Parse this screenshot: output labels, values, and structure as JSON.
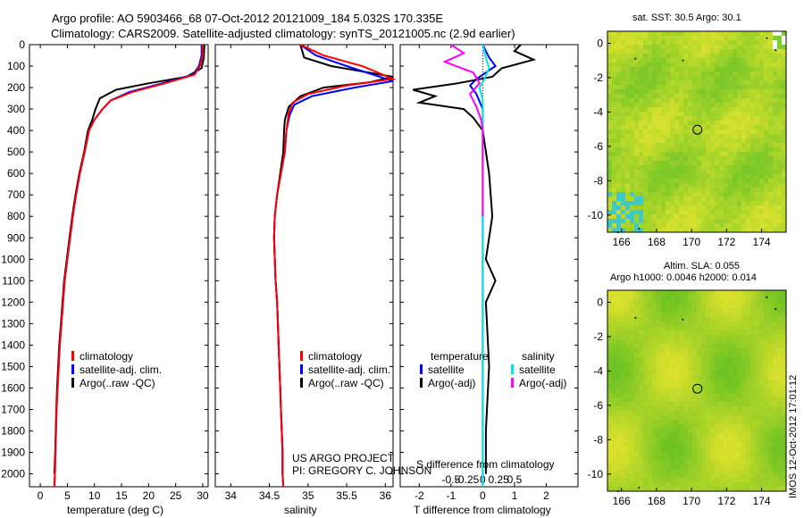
{
  "header": {
    "line1": "Argo profile: AO 5903466_68 07-Oct-2012 20121009_184 5.032S 170.335E",
    "line2": "Climatology: CARS2009. Satellite-adjusted climatology: synTS_20121005.nc (2.9d earlier)"
  },
  "depth_axis": {
    "ticks": [
      0,
      100,
      200,
      300,
      400,
      500,
      600,
      700,
      800,
      900,
      1000,
      1100,
      1200,
      1300,
      1400,
      1500,
      1600,
      1700,
      1800,
      1900,
      2000
    ],
    "ylim": [
      0,
      2060
    ]
  },
  "colors": {
    "climatology": "#ff0000",
    "satellite": "#0000ff",
    "argo": "#000000",
    "sat_sal": "#00e5e5",
    "argo_sal": "#ff00ff",
    "map_green": "#7ccf2e"
  },
  "panels": {
    "temperature": {
      "xlabel": "temperature (deg C)",
      "xticks": [
        "0",
        "5",
        "10",
        "15",
        "20",
        "25",
        "30"
      ],
      "legend": [
        "climatology",
        "satellite-adj. clim.",
        "Argo(..raw -QC)"
      ]
    },
    "salinity": {
      "xlabel": "salinity",
      "xticks": [
        "34",
        "34.5",
        "35",
        "35.5",
        "36"
      ],
      "legend": [
        "climatology",
        "satellite-adj. clim.",
        "Argo(..raw -QC)"
      ],
      "project_line1": "US ARGO PROJECT",
      "project_line2": "PI: GREGORY C. JOHNSON"
    },
    "difference": {
      "xlabel_top": "S difference from climatology",
      "xlabel_bottom": "T difference from climatology",
      "s_ticks": [
        "-0.5",
        "-0.25",
        "0",
        "0.25",
        "0.5"
      ],
      "t_ticks": [
        "-2",
        "-1",
        "0",
        "1",
        "2"
      ],
      "legend_temp_header": "temperature",
      "legend_sal_header": "salinity",
      "legend_temp": [
        "satellite",
        "Argo(-adj)"
      ],
      "legend_sal": [
        "satellite",
        "Argo(-adj)"
      ]
    }
  },
  "maps": {
    "sst": {
      "title": "sat. SST: 30.5 Argo: 30.1",
      "xticks": [
        "166",
        "168",
        "170",
        "172",
        "174"
      ],
      "yticks": [
        "0",
        "-2",
        "-4",
        "-6",
        "-8",
        "-10"
      ]
    },
    "sla": {
      "title1": "Altim. SLA: 0.055",
      "title2": "Argo h1000: 0.0046 h2000: 0.014",
      "xticks": [
        "166",
        "168",
        "170",
        "172",
        "174"
      ],
      "yticks": [
        "0",
        "-2",
        "-4",
        "-6",
        "-8",
        "-10"
      ]
    }
  },
  "footer": {
    "stamp": "IMOS 12-Oct-2012 17:01:12"
  },
  "chart_data": [
    {
      "type": "line",
      "name": "temperature profile",
      "xlabel": "temperature (deg C)",
      "ylabel": "",
      "xlim": [
        -2,
        31
      ],
      "ylim": [
        2060,
        0
      ],
      "series": [
        {
          "name": "climatology",
          "points": [
            [
              30,
              0
            ],
            [
              30,
              50
            ],
            [
              29.5,
              100
            ],
            [
              28.5,
              140
            ],
            [
              23,
              180
            ],
            [
              17,
              220
            ],
            [
              13,
              260
            ],
            [
              11.5,
              300
            ],
            [
              10,
              350
            ],
            [
              9,
              400
            ],
            [
              8.2,
              500
            ],
            [
              7.3,
              600
            ],
            [
              6.6,
              700
            ],
            [
              6,
              800
            ],
            [
              5.5,
              900
            ],
            [
              5,
              1000
            ],
            [
              4.5,
              1100
            ],
            [
              4.2,
              1200
            ],
            [
              3.9,
              1300
            ],
            [
              3.6,
              1400
            ],
            [
              3.4,
              1500
            ],
            [
              3.2,
              1600
            ],
            [
              3,
              1700
            ],
            [
              2.9,
              1800
            ],
            [
              2.8,
              1900
            ],
            [
              2.7,
              2000
            ],
            [
              2.6,
              2060
            ]
          ]
        },
        {
          "name": "satellite-adj. clim.",
          "points": [
            [
              29.8,
              0
            ],
            [
              29.8,
              50
            ],
            [
              29.3,
              100
            ],
            [
              28.2,
              140
            ],
            [
              22.5,
              180
            ],
            [
              16.5,
              220
            ],
            [
              13,
              260
            ],
            [
              11.5,
              300
            ],
            [
              10,
              350
            ],
            [
              9,
              400
            ],
            [
              8.2,
              500
            ],
            [
              7.3,
              600
            ],
            [
              6.6,
              700
            ],
            [
              6,
              800
            ],
            [
              5.5,
              900
            ],
            [
              5,
              1000
            ],
            [
              4.5,
              1100
            ],
            [
              4.2,
              1200
            ],
            [
              3.9,
              1300
            ],
            [
              3.6,
              1400
            ],
            [
              3.4,
              1500
            ],
            [
              3.2,
              1600
            ],
            [
              3,
              1700
            ],
            [
              2.9,
              1800
            ],
            [
              2.8,
              1900
            ],
            [
              2.7,
              2000
            ],
            [
              2.6,
              2060
            ]
          ]
        },
        {
          "name": "Argo(..raw -QC)",
          "points": [
            [
              30.3,
              0
            ],
            [
              30.2,
              60
            ],
            [
              29.8,
              110
            ],
            [
              27,
              150
            ],
            [
              20,
              180
            ],
            [
              14,
              210
            ],
            [
              11,
              250
            ],
            [
              10.2,
              300
            ],
            [
              9.6,
              350
            ],
            [
              8.8,
              400
            ],
            [
              8.1,
              500
            ],
            [
              7.2,
              600
            ],
            [
              6.5,
              700
            ],
            [
              5.9,
              800
            ],
            [
              5.4,
              900
            ],
            [
              4.9,
              1000
            ],
            [
              4.4,
              1100
            ],
            [
              4.1,
              1200
            ],
            [
              3.8,
              1300
            ],
            [
              3.5,
              1400
            ],
            [
              3.3,
              1500
            ],
            [
              3.1,
              1600
            ],
            [
              2.95,
              1700
            ],
            [
              2.85,
              1800
            ],
            [
              2.75,
              1900
            ],
            [
              2.6,
              2000
            ]
          ]
        }
      ]
    },
    {
      "type": "line",
      "name": "salinity profile",
      "xlabel": "salinity",
      "ylabel": "",
      "xlim": [
        33.8,
        36.1
      ],
      "ylim": [
        2060,
        0
      ],
      "series": [
        {
          "name": "climatology",
          "points": [
            [
              34.9,
              0
            ],
            [
              35.2,
              50
            ],
            [
              35.7,
              100
            ],
            [
              36.1,
              160
            ],
            [
              35.5,
              190
            ],
            [
              35.0,
              230
            ],
            [
              34.8,
              270
            ],
            [
              34.75,
              320
            ],
            [
              34.72,
              400
            ],
            [
              34.7,
              500
            ],
            [
              34.65,
              600
            ],
            [
              34.6,
              700
            ],
            [
              34.57,
              800
            ],
            [
              34.56,
              900
            ],
            [
              34.57,
              1000
            ],
            [
              34.58,
              1100
            ],
            [
              34.6,
              1200
            ],
            [
              34.61,
              1300
            ],
            [
              34.62,
              1400
            ],
            [
              34.63,
              1500
            ],
            [
              34.64,
              1600
            ],
            [
              34.65,
              1700
            ],
            [
              34.66,
              1800
            ],
            [
              34.67,
              1900
            ],
            [
              34.67,
              2000
            ],
            [
              34.68,
              2060
            ]
          ]
        },
        {
          "name": "satellite-adj. clim.",
          "points": [
            [
              34.9,
              0
            ],
            [
              35.1,
              50
            ],
            [
              35.5,
              100
            ],
            [
              36.1,
              170
            ],
            [
              35.6,
              200
            ],
            [
              35.05,
              240
            ],
            [
              34.82,
              280
            ],
            [
              34.76,
              330
            ],
            [
              34.72,
              400
            ],
            [
              34.7,
              500
            ],
            [
              34.65,
              600
            ],
            [
              34.6,
              700
            ],
            [
              34.57,
              800
            ],
            [
              34.56,
              900
            ],
            [
              34.57,
              1000
            ],
            [
              34.58,
              1100
            ],
            [
              34.6,
              1200
            ],
            [
              34.61,
              1300
            ],
            [
              34.62,
              1400
            ],
            [
              34.63,
              1500
            ],
            [
              34.64,
              1600
            ],
            [
              34.65,
              1700
            ],
            [
              34.66,
              1800
            ],
            [
              34.67,
              1900
            ],
            [
              34.67,
              2000
            ],
            [
              34.68,
              2060
            ]
          ]
        },
        {
          "name": "Argo(..raw -QC)",
          "points": [
            [
              34.9,
              0
            ],
            [
              34.95,
              60
            ],
            [
              35.3,
              100
            ],
            [
              36.1,
              150
            ],
            [
              35.8,
              175
            ],
            [
              35.2,
              200
            ],
            [
              34.9,
              240
            ],
            [
              34.75,
              290
            ],
            [
              34.7,
              350
            ],
            [
              34.69,
              400
            ],
            [
              34.68,
              500
            ],
            [
              34.64,
              600
            ],
            [
              34.6,
              700
            ],
            [
              34.57,
              800
            ],
            [
              34.56,
              900
            ],
            [
              34.57,
              1000
            ],
            [
              34.58,
              1100
            ],
            [
              34.6,
              1200
            ],
            [
              34.61,
              1300
            ],
            [
              34.62,
              1400
            ],
            [
              34.63,
              1500
            ],
            [
              34.64,
              1600
            ],
            [
              34.65,
              1700
            ],
            [
              34.66,
              1800
            ],
            [
              34.67,
              1900
            ],
            [
              34.67,
              2000
            ]
          ]
        }
      ]
    },
    {
      "type": "line",
      "name": "difference from climatology",
      "xlabel": "T difference from climatology",
      "ylabel": "",
      "xlim": [
        -2.6,
        3
      ],
      "ylim": [
        2060,
        0
      ],
      "series": [
        {
          "name": "temperature satellite",
          "points": [
            [
              0,
              0
            ],
            [
              0.2,
              60
            ],
            [
              0.4,
              100
            ],
            [
              -0.2,
              160
            ],
            [
              -0.4,
              190
            ],
            [
              -0.2,
              230
            ],
            [
              0,
              300
            ],
            [
              0,
              400
            ],
            [
              0,
              600
            ],
            [
              0,
              1000
            ],
            [
              0,
              1500
            ],
            [
              0,
              2060
            ]
          ]
        },
        {
          "name": "temperature Argo(-adj)",
          "points": [
            [
              1.2,
              0
            ],
            [
              1.0,
              30
            ],
            [
              1.6,
              70
            ],
            [
              0.6,
              110
            ],
            [
              0.3,
              150
            ],
            [
              -0.8,
              180
            ],
            [
              -2.2,
              210
            ],
            [
              -1.5,
              240
            ],
            [
              -2.0,
              270
            ],
            [
              -0.6,
              300
            ],
            [
              -0.3,
              340
            ],
            [
              0,
              400
            ],
            [
              0.2,
              600
            ],
            [
              0.3,
              800
            ],
            [
              0.1,
              1000
            ],
            [
              0.4,
              1100
            ],
            [
              0.1,
              1200
            ],
            [
              0.2,
              1500
            ],
            [
              0.1,
              1800
            ],
            [
              0.1,
              2000
            ]
          ]
        },
        {
          "name": "salinity satellite",
          "points": [
            [
              0,
              0
            ],
            [
              0.1,
              60
            ],
            [
              0.2,
              110
            ],
            [
              0.05,
              160
            ],
            [
              -0.1,
              200
            ],
            [
              0,
              260
            ],
            [
              0,
              400
            ],
            [
              0,
              1000
            ],
            [
              0,
              2060
            ]
          ]
        },
        {
          "name": "salinity Argo(-adj)",
          "points": [
            [
              -1.0,
              0
            ],
            [
              -0.6,
              40
            ],
            [
              -1.2,
              80
            ],
            [
              -0.3,
              130
            ],
            [
              -0.1,
              180
            ],
            [
              -0.4,
              230
            ],
            [
              -0.2,
              290
            ],
            [
              -0.05,
              350
            ],
            [
              0,
              400
            ],
            [
              0,
              800
            ]
          ]
        }
      ]
    }
  ]
}
